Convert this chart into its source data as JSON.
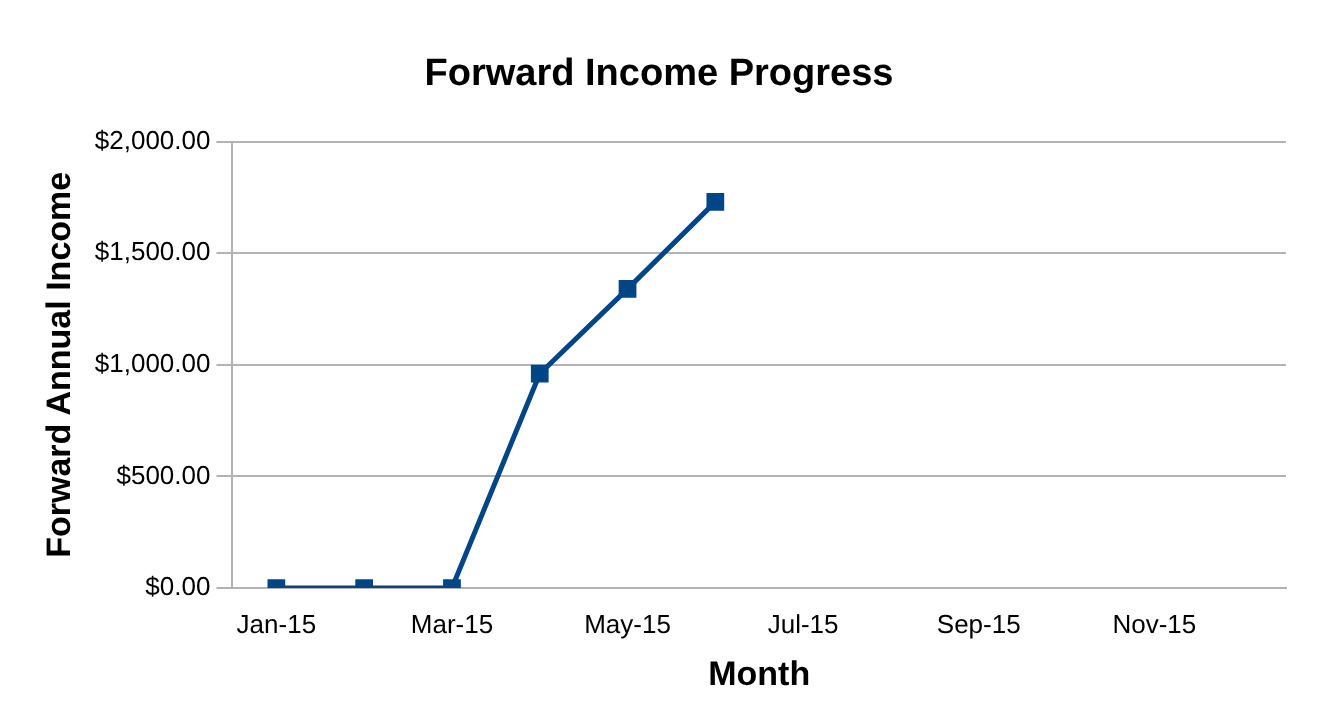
{
  "chart_data": {
    "type": "line",
    "title": "Forward Income Progress",
    "xlabel": "Month",
    "ylabel": "Forward Annual Income",
    "categories": [
      "Jan-15",
      null,
      "Mar-15",
      null,
      "May-15",
      null,
      "Jul-15",
      null,
      "Sep-15",
      null,
      "Nov-15",
      null
    ],
    "series": [
      {
        "color": "#004586",
        "values": [
          0,
          0,
          0,
          960,
          1340,
          1730,
          null,
          null,
          null,
          null,
          null,
          null
        ]
      }
    ],
    "ylim": [
      0,
      2000
    ],
    "yticks": [
      {
        "value": 0,
        "label": "$0.00"
      },
      {
        "value": 500,
        "label": "$500.00"
      },
      {
        "value": 1000,
        "label": "$1,000.00"
      },
      {
        "value": 1500,
        "label": "$1,500.00"
      },
      {
        "value": 2000,
        "label": "$2,000.00"
      }
    ],
    "grid": "y",
    "legend": false,
    "marker": "square",
    "line_style": "solid"
  }
}
